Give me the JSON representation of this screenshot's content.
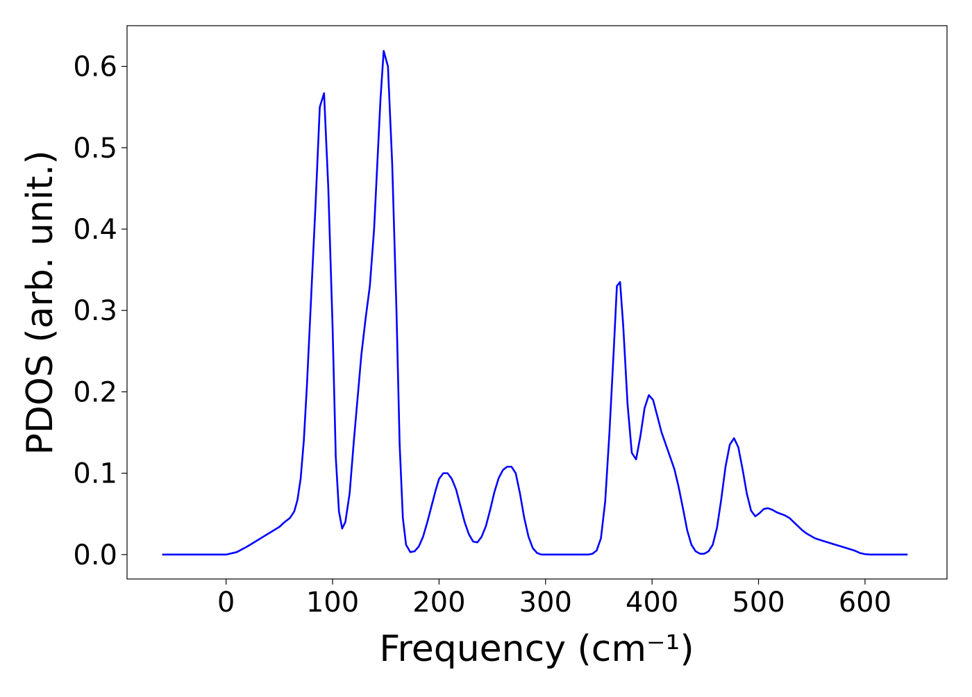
{
  "chart_data": {
    "type": "line",
    "xlabel": "Frequency (cm⁻¹)",
    "ylabel": "PDOS (arb. unit.)",
    "series": [
      {
        "color": "#0000ff",
        "x": [
          -60,
          -40,
          -20,
          0,
          10,
          20,
          30,
          40,
          50,
          55,
          60,
          64,
          67,
          70,
          73,
          76,
          80,
          84,
          88,
          92,
          96,
          100,
          103,
          106,
          109,
          112,
          116,
          120,
          124,
          127,
          131,
          135,
          139,
          142,
          145,
          148,
          152,
          156,
          160,
          163,
          166,
          169,
          173,
          177,
          181,
          185,
          189,
          193,
          197,
          200,
          204,
          208,
          212,
          216,
          220,
          224,
          228,
          232,
          236,
          240,
          244,
          248,
          252,
          256,
          260,
          264,
          268,
          272,
          276,
          280,
          284,
          288,
          292,
          296,
          340,
          344,
          348,
          352,
          356,
          360,
          364,
          367,
          370,
          373,
          377,
          381,
          385,
          389,
          393,
          397,
          401,
          405,
          409,
          413,
          417,
          421,
          425,
          429,
          433,
          437,
          441,
          445,
          449,
          453,
          457,
          461,
          465,
          469,
          473,
          477,
          481,
          485,
          489,
          493,
          497,
          501,
          505,
          509,
          513,
          517,
          521,
          525,
          529,
          533,
          537,
          541,
          545,
          549,
          553,
          560,
          570,
          580,
          590,
          595,
          600,
          605,
          640
        ],
        "values": [
          0,
          0,
          0,
          0,
          0.003,
          0.01,
          0.018,
          0.026,
          0.034,
          0.04,
          0.045,
          0.053,
          0.067,
          0.093,
          0.14,
          0.21,
          0.32,
          0.43,
          0.55,
          0.567,
          0.45,
          0.28,
          0.12,
          0.053,
          0.032,
          0.04,
          0.075,
          0.14,
          0.2,
          0.245,
          0.29,
          0.33,
          0.4,
          0.48,
          0.56,
          0.619,
          0.6,
          0.48,
          0.3,
          0.135,
          0.045,
          0.012,
          0.003,
          0.004,
          0.01,
          0.022,
          0.04,
          0.06,
          0.08,
          0.093,
          0.1,
          0.1,
          0.093,
          0.08,
          0.06,
          0.04,
          0.025,
          0.016,
          0.015,
          0.022,
          0.035,
          0.055,
          0.077,
          0.094,
          0.104,
          0.108,
          0.108,
          0.1,
          0.075,
          0.045,
          0.022,
          0.008,
          0.002,
          0,
          0,
          0.001,
          0.005,
          0.02,
          0.065,
          0.15,
          0.25,
          0.33,
          0.335,
          0.28,
          0.185,
          0.125,
          0.117,
          0.145,
          0.18,
          0.196,
          0.19,
          0.17,
          0.15,
          0.135,
          0.12,
          0.105,
          0.083,
          0.057,
          0.03,
          0.012,
          0.004,
          0.001,
          0.001,
          0.004,
          0.012,
          0.033,
          0.068,
          0.108,
          0.135,
          0.143,
          0.132,
          0.105,
          0.075,
          0.054,
          0.047,
          0.051,
          0.056,
          0.057,
          0.055,
          0.052,
          0.05,
          0.048,
          0.045,
          0.04,
          0.035,
          0.03,
          0.026,
          0.023,
          0.02,
          0.017,
          0.013,
          0.009,
          0.005,
          0.002,
          0.0005,
          0,
          0
        ]
      }
    ],
    "xlim": [
      -93,
      677
    ],
    "ylim": [
      -0.03,
      0.65
    ],
    "xticks": [
      0,
      100,
      200,
      300,
      400,
      500,
      600
    ],
    "yticks": [
      {
        "value": 0,
        "label": "0.0"
      },
      0.1,
      0.2,
      0.3,
      0.4,
      0.5,
      0.6
    ]
  }
}
